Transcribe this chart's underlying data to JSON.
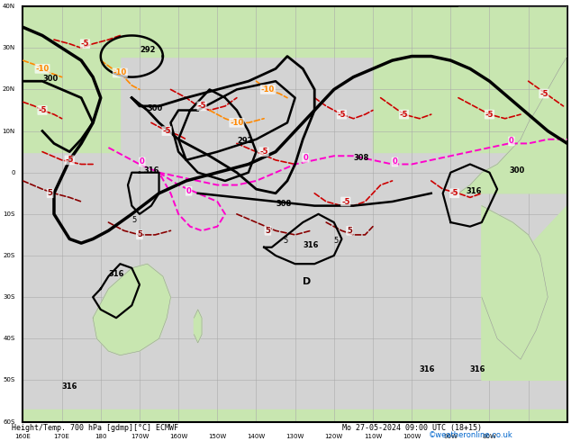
{
  "title_bottom": "Height/Temp. 700 hPa [gdmp][°C] ECMWF",
  "title_right": "Mo 27-05-2024 09:00 UTC (18+15)",
  "watermark": "©weatheronline.co.uk",
  "bg_ocean": "#d3d3d3",
  "bg_land_light": "#c8e6c0",
  "bg_land_dark": "#b0ccb0",
  "grid_color": "#aaaaaa",
  "contour_height_color": "#000000",
  "contour_temp_neg_color_1": "#ff0000",
  "contour_temp_neg_color_2": "#ff6600",
  "contour_temp_zero_color": "#ff00ff",
  "contour_temp_pos_color": "#cc0000",
  "figwidth": 6.34,
  "figheight": 4.9,
  "dpi": 100,
  "xlim": [
    160,
    310
  ],
  "ylim": [
    -60,
    40
  ],
  "xlabel_ticks": [
    160,
    170,
    180,
    170,
    160,
    150,
    140,
    130,
    120,
    110,
    100,
    90,
    80
  ],
  "xlabel_labels": [
    "160E",
    "170E",
    "180",
    "170W",
    "160W",
    "150W",
    "140W",
    "130W",
    "120W",
    "110W",
    "100W",
    "90W",
    "80W"
  ],
  "ylabel_ticks": [
    -60,
    -40,
    -20,
    0,
    20,
    40
  ],
  "ylabel_labels": [
    "60S",
    "40S",
    "20S",
    "0",
    "20N",
    "40N"
  ]
}
